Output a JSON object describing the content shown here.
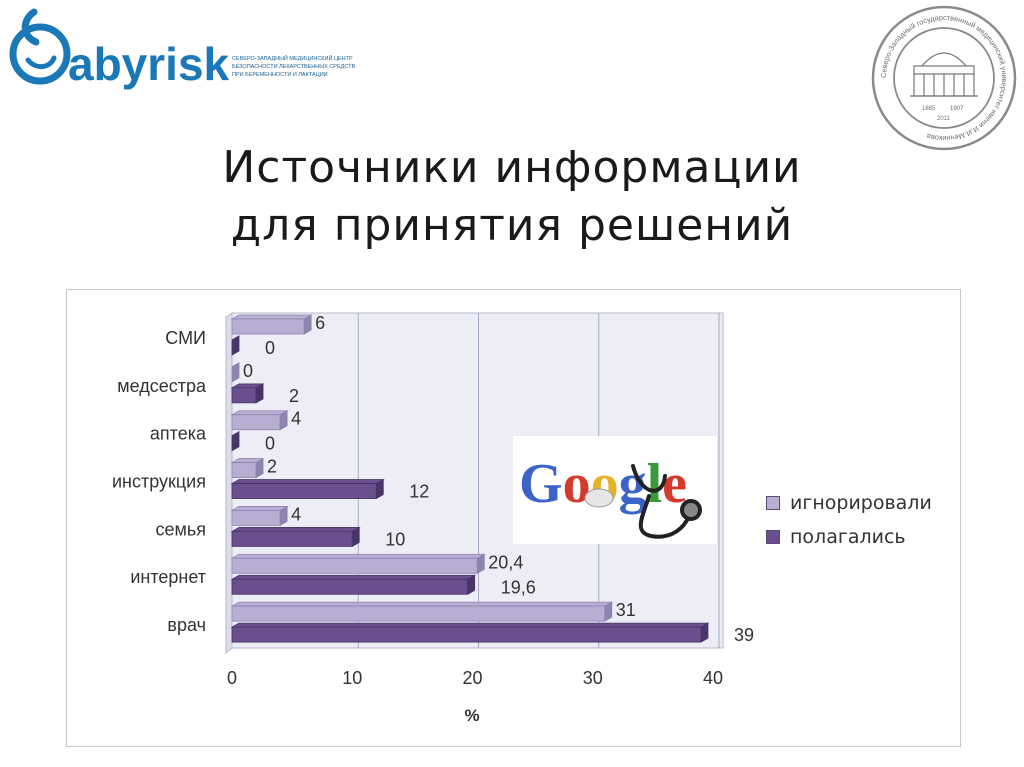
{
  "slide": {
    "title_line1": "Источники информации",
    "title_line2": "для принятия решений"
  },
  "logo": {
    "brand": "abyrisk",
    "org_line1": "СЕВЕРО-ЗАПАДНЫЙ МЕДИЦИНСКИЙ ЦЕНТР",
    "org_line2": "БЕЗОПАСНОСТИ ЛЕКАРСТВЕННЫХ СРЕДСТВ",
    "org_line3": "ПРИ БЕРЕМЕННОСТИ И ЛАКТАЦИИ"
  },
  "seal": {
    "ring_text": "Северо-Западный государственный медицинский университет имени И.И.Мечникова",
    "years_left": "1885",
    "years_right": "1907",
    "year_bottom": "2011"
  },
  "google_image": {
    "text": "Google"
  },
  "colors": {
    "ignored": "#b8aed2",
    "relied": "#6a4f8e",
    "plot_bg": "#ededf5",
    "grid": "#a8a8c4"
  },
  "chart_data": {
    "type": "bar",
    "orientation": "horizontal",
    "categories": [
      "СМИ",
      "медсестра",
      "аптека",
      "инструкция",
      "семья",
      "интернет",
      "врач"
    ],
    "series": [
      {
        "name": "игнорировали",
        "values": [
          6,
          0,
          4,
          2,
          4,
          20.4,
          31
        ],
        "labels": [
          "6",
          "0",
          "4",
          "2",
          "4",
          "20,4",
          "31"
        ]
      },
      {
        "name": "полагались",
        "values": [
          0,
          2,
          0,
          12,
          10,
          19.6,
          39
        ],
        "labels": [
          "0",
          "2",
          "0",
          "12",
          "10",
          "19,6",
          "39"
        ]
      }
    ],
    "xlim": [
      0,
      40
    ],
    "xticks": [
      "0",
      "10",
      "20",
      "30",
      "40"
    ],
    "xlabel": "%",
    "ylabel": "",
    "grid": true,
    "legend_position": "right"
  }
}
